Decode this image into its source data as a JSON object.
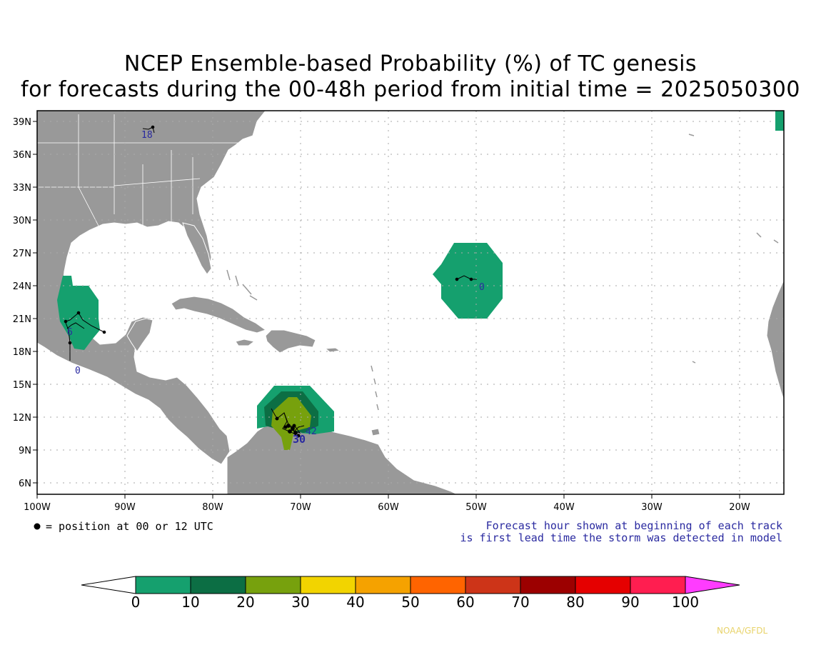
{
  "title_line1": "NCEP Ensemble-based Probability (%) of TC genesis",
  "title_line2": "for forecasts during the 00-48h period from initial time = 2025050300",
  "map": {
    "lat_labels": [
      "39N",
      "36N",
      "33N",
      "30N",
      "27N",
      "24N",
      "21N",
      "18N",
      "15N",
      "12N",
      "9N",
      "6N"
    ],
    "lon_labels": [
      "100W",
      "90W",
      "80W",
      "70W",
      "60W",
      "50W",
      "40W",
      "30W",
      "20W"
    ],
    "colors": {
      "land": "#999999",
      "ocean": "#ffffff",
      "coast": "#ffffff",
      "grid": "#aaaaaa"
    }
  },
  "track_labels": [
    {
      "id": "track-label-18",
      "text": "18"
    },
    {
      "id": "track-label-0-atlantic",
      "text": "0"
    },
    {
      "id": "track-label-6-gulf",
      "text": "6"
    },
    {
      "id": "track-label-0-pacific",
      "text": "0"
    },
    {
      "id": "track-label-42",
      "text": "42"
    },
    {
      "id": "track-label-30",
      "text": "30"
    }
  ],
  "legend": {
    "position_note": "= position at 00 or 12 UTC",
    "forecast_note_line1": "Forecast hour shown at beginning of each track",
    "forecast_note_line2": "is first lead time the storm was detected in model"
  },
  "colorbar": {
    "labels": [
      "0",
      "10",
      "20",
      "30",
      "40",
      "50",
      "60",
      "70",
      "80",
      "90",
      "100"
    ],
    "colors": [
      "#15a06e",
      "#0c6e44",
      "#77a10d",
      "#f2d400",
      "#f5a200",
      "#ff6400",
      "#cd3418",
      "#9c0000",
      "#e50000",
      "#ff1e50"
    ],
    "under_color": "#ffffff",
    "over_color": "#ff3cff"
  },
  "credit": "NOAA/GFDL"
}
